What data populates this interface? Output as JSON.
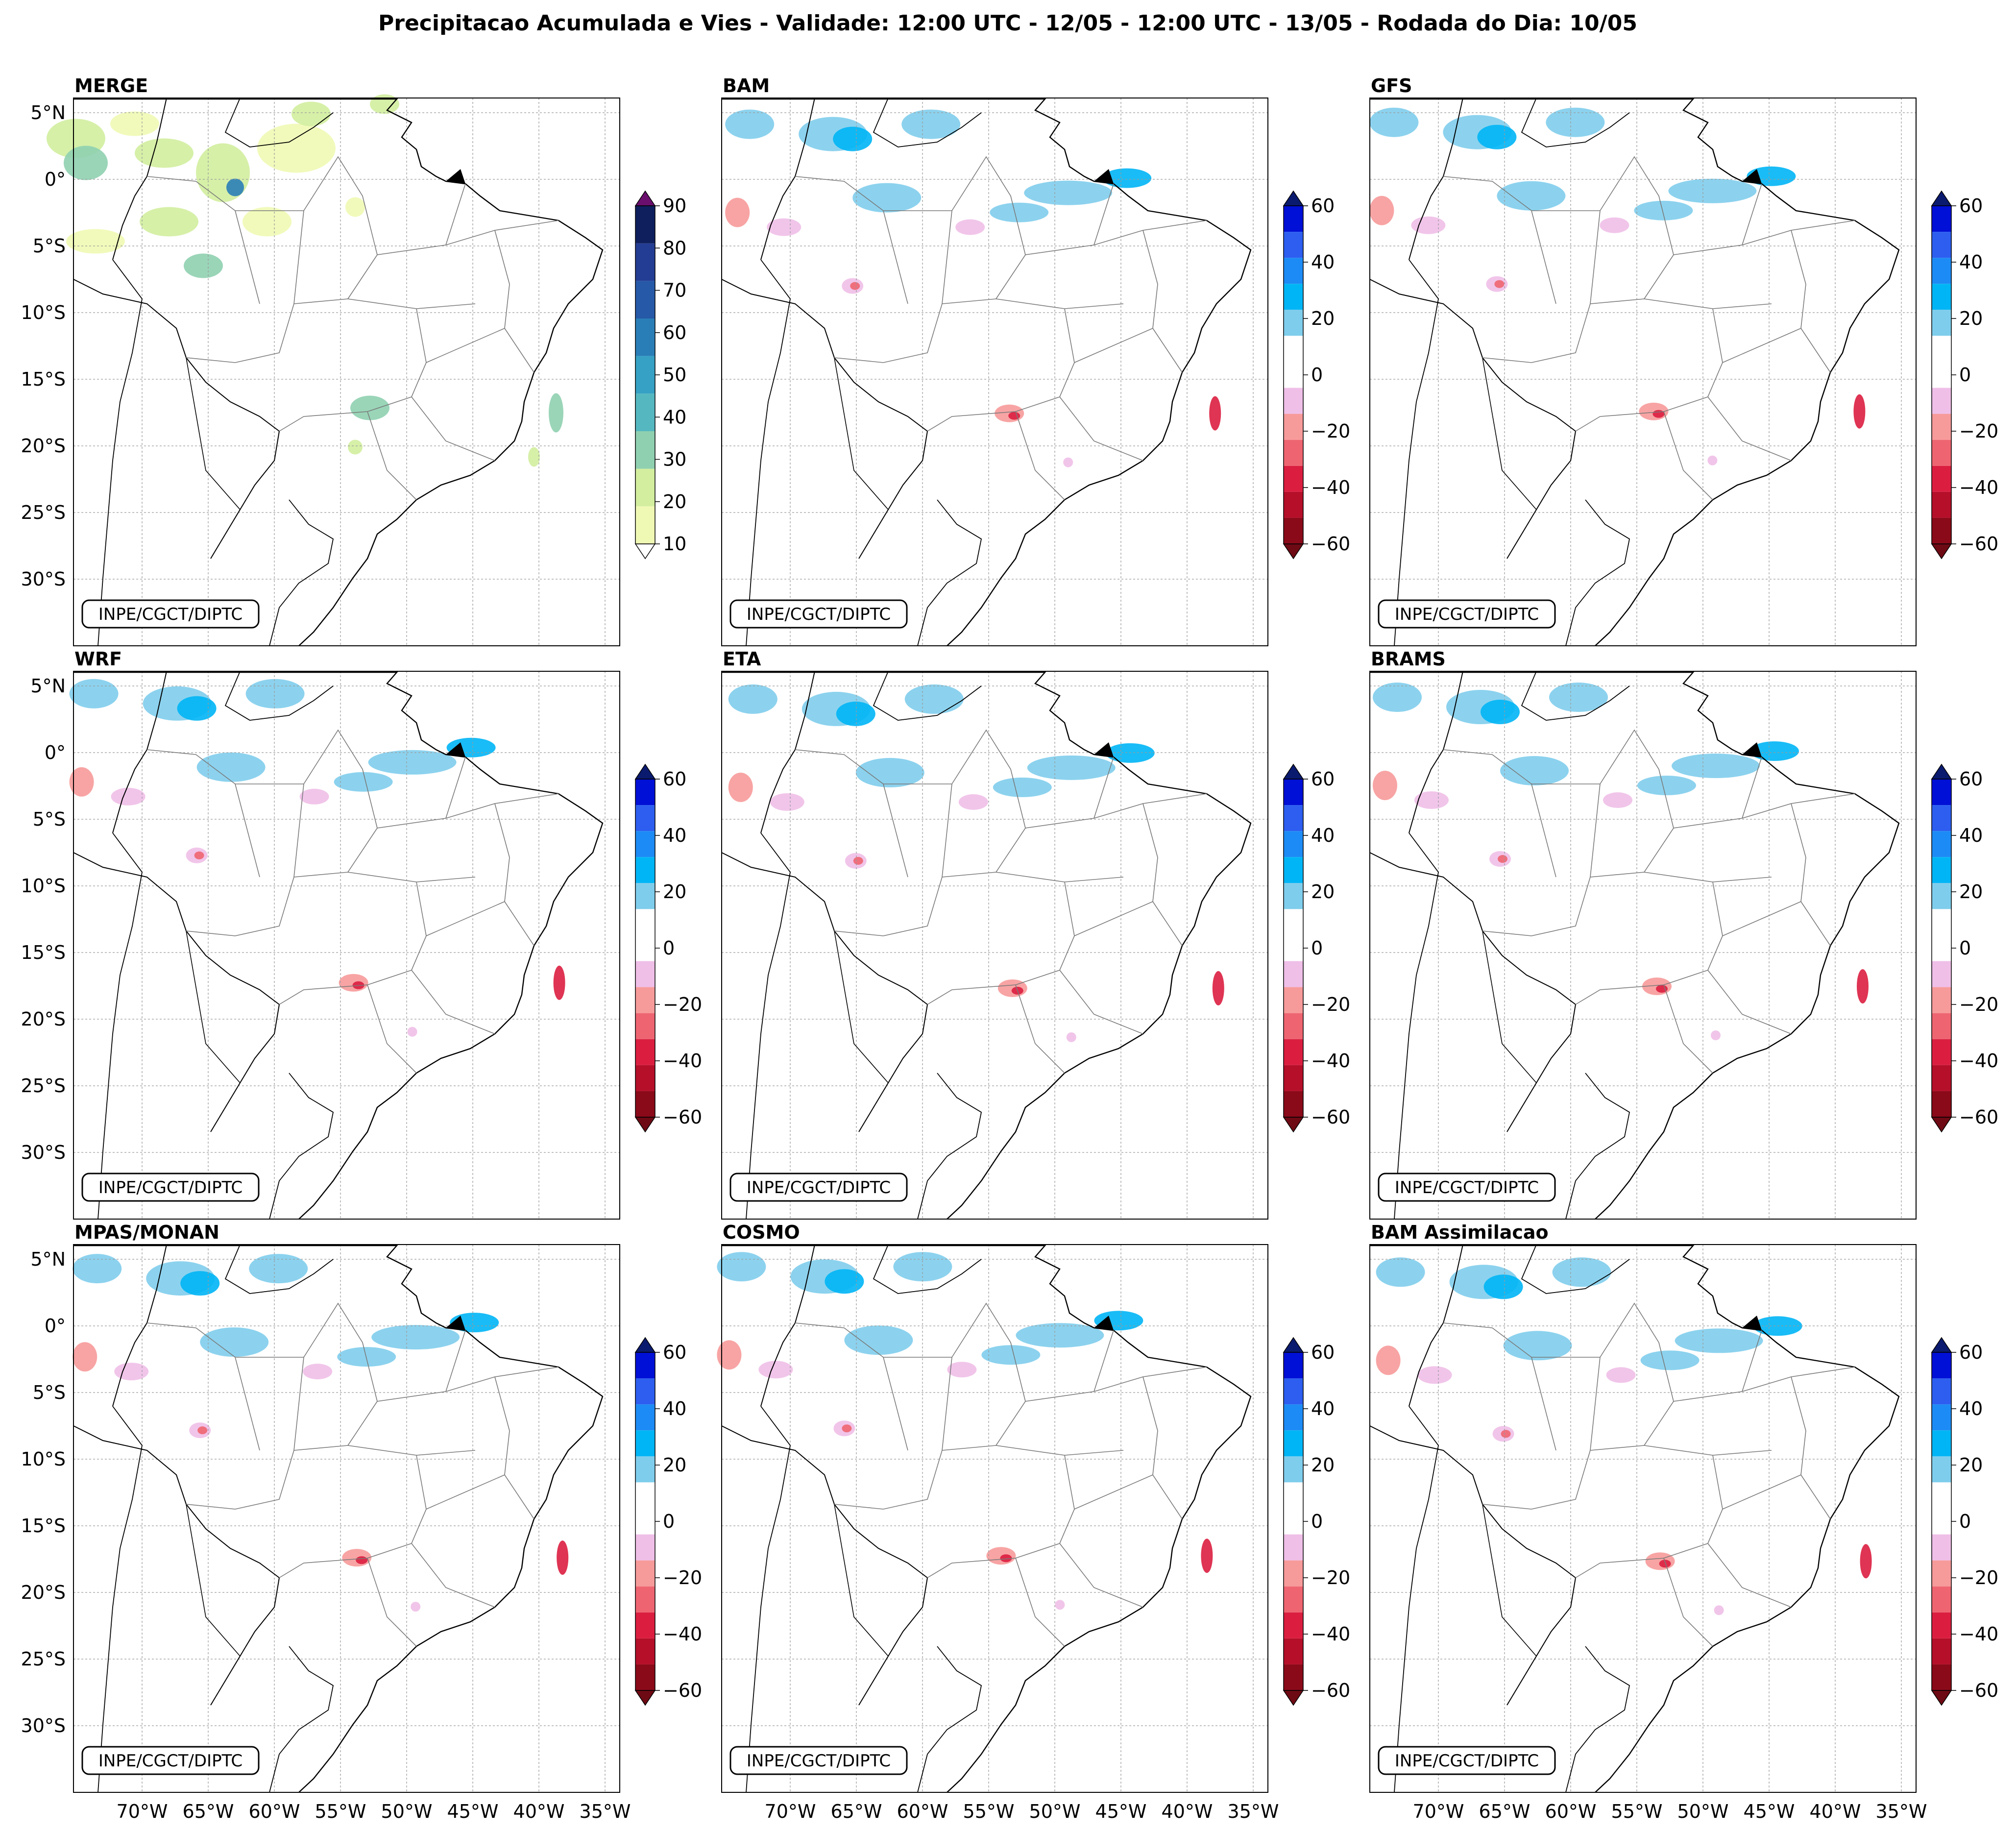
{
  "figure": {
    "title": "Precipitacao Acumulada e Vies - Validade: 12:00 UTC - 12/05 - 12:00 UTC - 13/05 - Rodada do Dia: 10/05",
    "credit": "INPE/CGCT/DIPTC"
  },
  "map": {
    "lat_ticks": [
      "5°N",
      "0°",
      "5°S",
      "10°S",
      "15°S",
      "20°S",
      "25°S",
      "30°S"
    ],
    "lon_ticks": [
      "70°W",
      "65°W",
      "60°W",
      "55°W",
      "50°W",
      "45°W",
      "40°W",
      "35°W"
    ],
    "extent": {
      "lon": [
        -76,
        -34
      ],
      "lat": [
        -35,
        6
      ]
    }
  },
  "colorbars": {
    "precip": {
      "ticks": [
        "10",
        "20",
        "30",
        "40",
        "50",
        "60",
        "70",
        "80",
        "90"
      ],
      "colors": [
        "#f0f9b4",
        "#d2ee9e",
        "#8fd0b0",
        "#55b8c1",
        "#36a1c4",
        "#2a7eb7",
        "#2659a8",
        "#243d94",
        "#0f1f5e"
      ],
      "under_color": "#ffffff",
      "over_color": "#6a0f6e"
    },
    "bias": {
      "ticks": [
        "60",
        "40",
        "20",
        "0",
        "−20",
        "−40",
        "−60"
      ],
      "colors_top_to_bottom": [
        "#0010d6",
        "#2d5ef0",
        "#1d8bf5",
        "#00b5f5",
        "#7fcdec",
        "#ffffff",
        "#ffffff",
        "#efbfe8",
        "#f79a9a",
        "#ee6571",
        "#db1e40",
        "#b50f2a",
        "#8a0a19"
      ],
      "over_color": "#0a1a6e",
      "under_color": "#6e0a14"
    }
  },
  "panels": [
    {
      "name": "MERGE",
      "colorbar": "precip"
    },
    {
      "name": "BAM",
      "colorbar": "bias"
    },
    {
      "name": "GFS",
      "colorbar": "bias"
    },
    {
      "name": "WRF",
      "colorbar": "bias"
    },
    {
      "name": "ETA",
      "colorbar": "bias"
    },
    {
      "name": "BRAMS",
      "colorbar": "bias"
    },
    {
      "name": "MPAS/MONAN",
      "colorbar": "bias"
    },
    {
      "name": "COSMO",
      "colorbar": "bias"
    },
    {
      "name": "BAM Assimilacao",
      "colorbar": "bias"
    }
  ]
}
